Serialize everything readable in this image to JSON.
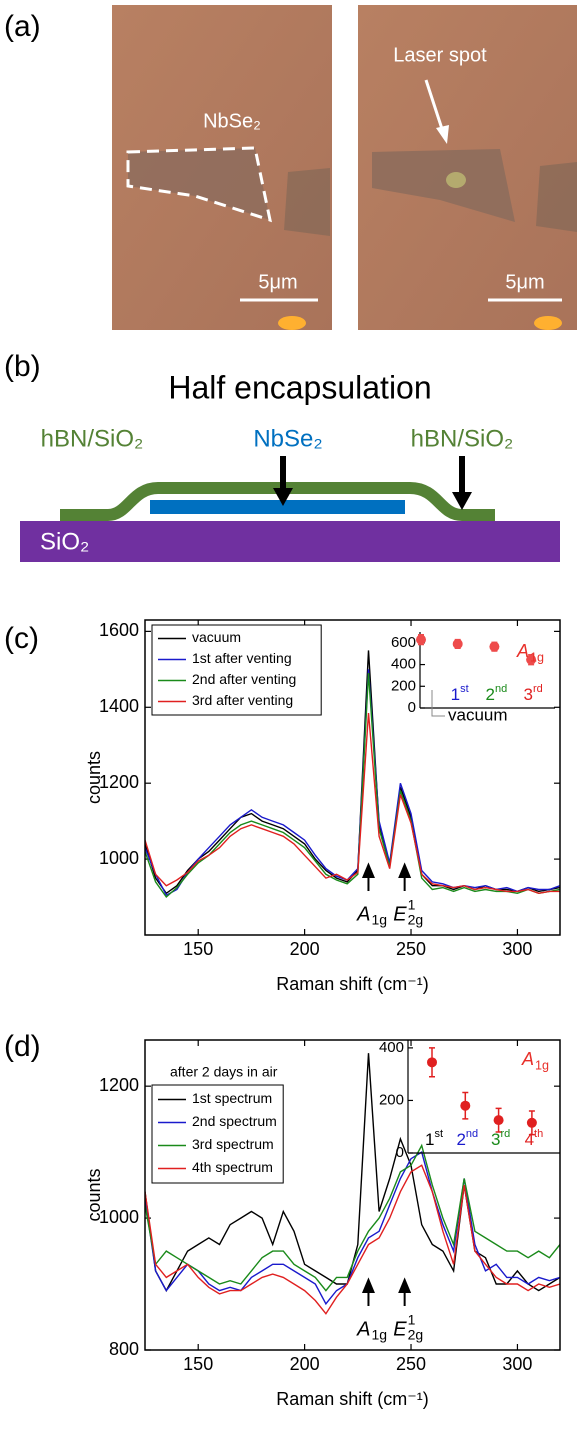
{
  "panel_labels": [
    "(a)",
    "(b)",
    "(c)",
    "(d)"
  ],
  "panel_a": {
    "flake_label": "NbSe₂",
    "laser_label": "Laser spot",
    "scale_bars": [
      "5μm",
      "5μm"
    ]
  },
  "panel_b": {
    "title": "Half encapsulation",
    "labels": [
      "hBN/SiO₂",
      "NbSe₂",
      "hBN/SiO₂"
    ],
    "substrate": "SiO₂"
  },
  "chart_data": [
    {
      "type": "line",
      "xlabel": "Raman shift (cm⁻¹)",
      "ylabel": "counts",
      "x": [
        125,
        130,
        135,
        140,
        145,
        150,
        155,
        160,
        165,
        170,
        175,
        180,
        185,
        190,
        195,
        200,
        205,
        210,
        215,
        220,
        225,
        230,
        235,
        240,
        245,
        250,
        255,
        260,
        265,
        270,
        275,
        280,
        285,
        290,
        295,
        300,
        305,
        310,
        315,
        320
      ],
      "xlim": [
        125,
        320
      ],
      "ylim": [
        800,
        1630
      ],
      "xticks": [
        150,
        200,
        250,
        300
      ],
      "yticks": [
        1000,
        1200,
        1400,
        1600
      ],
      "legend": "upper left",
      "series": [
        {
          "name": "vacuum",
          "color": "#000000",
          "values": [
            1040,
            950,
            910,
            930,
            970,
            1000,
            1020,
            1050,
            1080,
            1110,
            1120,
            1100,
            1090,
            1080,
            1060,
            1040,
            1000,
            970,
            950,
            940,
            970,
            1550,
            1090,
            985,
            1190,
            1110,
            960,
            930,
            930,
            920,
            930,
            920,
            930,
            920,
            920,
            915,
            925,
            915,
            920,
            925
          ]
        },
        {
          "name": "1st after venting",
          "color": "#1a1acc",
          "values": [
            1030,
            960,
            905,
            920,
            965,
            1000,
            1030,
            1060,
            1090,
            1110,
            1130,
            1110,
            1100,
            1090,
            1070,
            1050,
            1010,
            975,
            955,
            945,
            975,
            1500,
            1100,
            990,
            1200,
            1120,
            970,
            940,
            935,
            925,
            930,
            925,
            930,
            920,
            925,
            915,
            925,
            920,
            920,
            930
          ]
        },
        {
          "name": "2nd after venting",
          "color": "#1a8a1a",
          "values": [
            1020,
            940,
            900,
            925,
            960,
            990,
            1010,
            1040,
            1070,
            1090,
            1100,
            1090,
            1080,
            1070,
            1050,
            1030,
            995,
            960,
            945,
            935,
            960,
            1490,
            1080,
            980,
            1180,
            1100,
            950,
            920,
            925,
            915,
            925,
            915,
            920,
            915,
            915,
            910,
            920,
            910,
            915,
            920
          ]
        },
        {
          "name": "3rd after venting",
          "color": "#e02020",
          "values": [
            1050,
            960,
            930,
            945,
            965,
            995,
            1010,
            1030,
            1060,
            1080,
            1090,
            1080,
            1070,
            1060,
            1040,
            1010,
            980,
            950,
            960,
            945,
            965,
            1385,
            1060,
            975,
            1170,
            1095,
            960,
            935,
            930,
            925,
            930,
            920,
            925,
            920,
            915,
            915,
            920,
            910,
            915,
            915
          ]
        }
      ],
      "annotations": [
        {
          "text": "A",
          "sub": "1g",
          "x": 230
        },
        {
          "text": "E",
          "sub": "2g",
          "sup": "1",
          "x": 247
        }
      ]
    },
    {
      "type": "point",
      "title": {
        "text": "A",
        "sub": "1g"
      },
      "title_color": "#e8302a",
      "categories": [
        "vacuum",
        "1st",
        "2nd",
        "3rd"
      ],
      "category_colors": [
        "#000000",
        "#1a1acc",
        "#1a8a1a",
        "#e02020"
      ],
      "values": [
        630,
        590,
        565,
        445
      ],
      "errors": [
        45,
        40,
        40,
        45
      ],
      "color": "#ee4b4b",
      "ylim": [
        0,
        700
      ],
      "yticks": [
        0,
        200,
        400,
        600
      ]
    },
    {
      "type": "line",
      "xlabel": "Raman shift (cm⁻¹)",
      "ylabel": "counts",
      "note": "after 2 days in air",
      "x": [
        125,
        130,
        135,
        140,
        145,
        150,
        155,
        160,
        165,
        170,
        175,
        180,
        185,
        190,
        195,
        200,
        205,
        210,
        215,
        220,
        225,
        230,
        235,
        240,
        245,
        250,
        255,
        260,
        265,
        270,
        275,
        280,
        285,
        290,
        295,
        300,
        305,
        310,
        315,
        320
      ],
      "xlim": [
        125,
        320
      ],
      "ylim": [
        800,
        1270
      ],
      "xticks": [
        150,
        200,
        250,
        300
      ],
      "yticks": [
        800,
        1000,
        1200
      ],
      "legend": "upper left",
      "series": [
        {
          "name": "1st spectrum",
          "color": "#000000",
          "values": [
            1040,
            920,
            890,
            920,
            950,
            960,
            970,
            960,
            990,
            1000,
            1010,
            1000,
            960,
            1010,
            980,
            930,
            920,
            910,
            900,
            900,
            960,
            1250,
            1010,
            1060,
            1120,
            1080,
            990,
            960,
            950,
            920,
            1050,
            950,
            940,
            900,
            900,
            920,
            900,
            890,
            900,
            910
          ]
        },
        {
          "name": "2nd spectrum",
          "color": "#1a1acc",
          "values": [
            1030,
            920,
            890,
            910,
            930,
            920,
            900,
            890,
            895,
            890,
            910,
            920,
            930,
            930,
            920,
            910,
            900,
            870,
            890,
            900,
            940,
            970,
            980,
            1020,
            1060,
            1090,
            1100,
            1040,
            990,
            950,
            1060,
            960,
            920,
            930,
            910,
            910,
            900,
            910,
            905,
            910
          ]
        },
        {
          "name": "3rd spectrum",
          "color": "#1a8a1a",
          "values": [
            1020,
            930,
            950,
            940,
            930,
            920,
            910,
            900,
            905,
            900,
            920,
            940,
            950,
            950,
            930,
            920,
            910,
            890,
            910,
            910,
            950,
            980,
            1000,
            1030,
            1070,
            1080,
            1110,
            1050,
            1000,
            960,
            1060,
            980,
            970,
            960,
            950,
            950,
            940,
            950,
            940,
            960
          ]
        },
        {
          "name": "4th spectrum",
          "color": "#e02020",
          "values": [
            1040,
            930,
            910,
            920,
            930,
            910,
            895,
            885,
            890,
            890,
            900,
            910,
            915,
            910,
            900,
            890,
            875,
            855,
            880,
            900,
            930,
            960,
            970,
            1000,
            1040,
            1070,
            1080,
            1040,
            980,
            930,
            1050,
            950,
            930,
            910,
            900,
            900,
            890,
            900,
            895,
            900
          ]
        }
      ],
      "annotations": [
        {
          "text": "A",
          "sub": "1g",
          "x": 230
        },
        {
          "text": "E",
          "sub": "2g",
          "sup": "1",
          "x": 247
        }
      ]
    },
    {
      "type": "point",
      "title": {
        "text": "A",
        "sub": "1g"
      },
      "title_color": "#e8302a",
      "categories": [
        "1st",
        "2nd",
        "3rd",
        "4th"
      ],
      "category_colors": [
        "#000000",
        "#1a1acc",
        "#1a8a1a",
        "#e02020"
      ],
      "values": [
        345,
        180,
        125,
        115
      ],
      "errors": [
        55,
        50,
        45,
        45
      ],
      "color": "#e02020",
      "ylim": [
        0,
        430
      ],
      "yticks": [
        0,
        200,
        400
      ]
    }
  ]
}
